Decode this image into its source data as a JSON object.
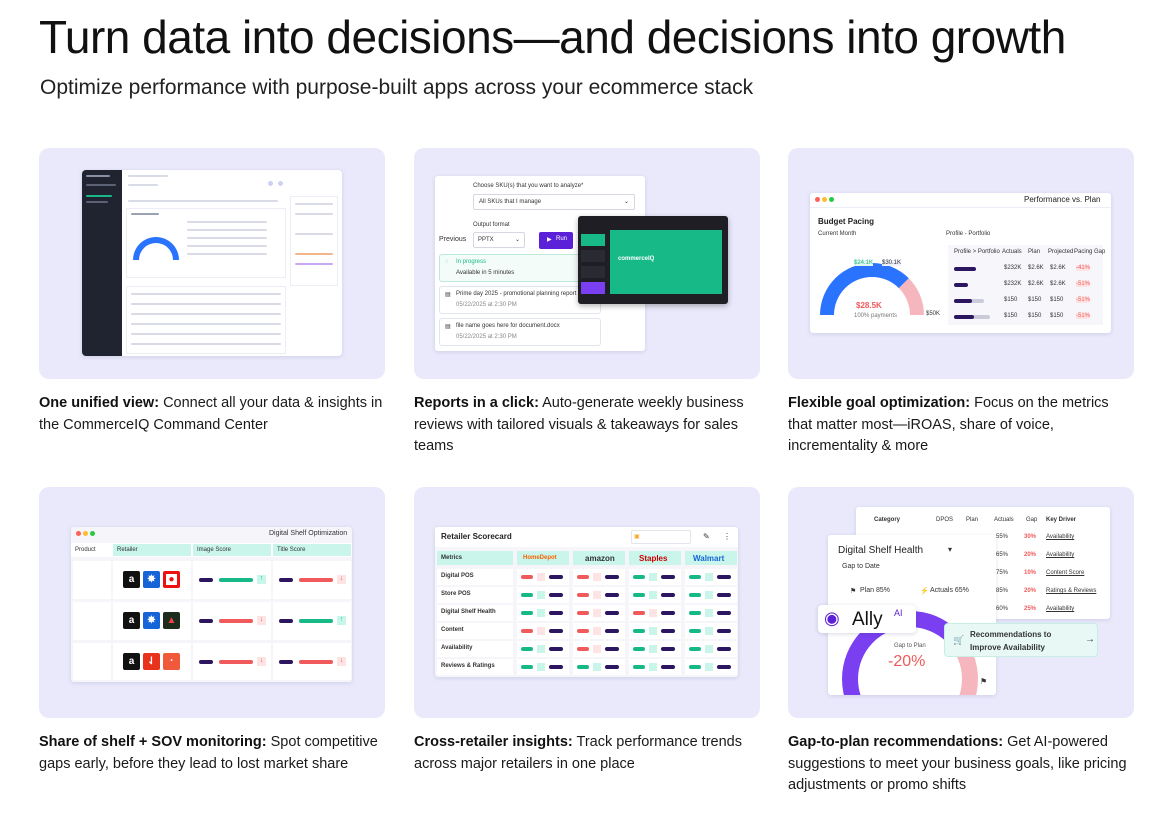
{
  "header": {
    "title": "Turn data into decisions—and decisions into growth",
    "subtitle": "Optimize performance with purpose-built apps across your ecommerce stack"
  },
  "cards": [
    {
      "title": "One unified view:",
      "desc": " Connect all your data & insights in the CommerceIQ Command Center"
    },
    {
      "title": "Reports in a click:",
      "desc": " Auto-generate weekly business reviews with tailored visuals & takeaways for sales teams"
    },
    {
      "title": "Flexible goal optimization:",
      "desc": " Focus on the metrics that matter most—iROAS, share of voice, incrementality & more"
    },
    {
      "title": "Share of shelf + SOV monitoring:",
      "desc": " Spot competitive gaps early, before they lead to lost market share"
    },
    {
      "title": "Cross-retailer insights:",
      "desc": " Track performance trends across major retailers in one place"
    },
    {
      "title": "Gap-to-plan recommendations:",
      "desc": " Get AI-powered suggestions to meet your business goals, like pricing adjustments or promo shifts"
    }
  ],
  "reports_mock": {
    "prompt": "Choose SKU(s) that you want to analyze*",
    "sku_value": "All SKUs that I manage",
    "format_label": "Output format",
    "format_value": "PPTX",
    "run_label": "Run",
    "previous_label": "Previous",
    "progress_title": "In progress",
    "progress_sub": "Available in 5 minutes",
    "file1": "Prime day 2025 - promotional planning report",
    "file1_date": "05/22/2025 at 2:30 PM",
    "file2": "file name goes here for document.docx",
    "file2_date": "05/22/2025 at 2:30 PM",
    "slide_brand": "commerceIQ"
  },
  "performance_mock": {
    "title": "Performance vs. Plan",
    "section": "Budget Pacing",
    "filter1": "Current Month",
    "filter2": "Profile - Portfolio",
    "gauge_value": "$28.5K",
    "gauge_sub": "100% payments",
    "gauge_left": "$24.1K",
    "gauge_right": "$30.1K",
    "gauge_end": "$50K",
    "col_headers": [
      "Profile > Portfolio",
      "Actuals",
      "Plan",
      "Projected",
      "Pacing Gap"
    ],
    "rows": [
      {
        "actual": "$232K",
        "plan": "$2.6K",
        "proj": "$2.6K",
        "gap": "-41%"
      },
      {
        "actual": "$232K",
        "plan": "$2.6K",
        "proj": "$2.6K",
        "gap": "-51%"
      },
      {
        "actual": "$150",
        "plan": "$150",
        "proj": "$150",
        "gap": "-51%"
      },
      {
        "actual": "$150",
        "plan": "$150",
        "proj": "$150",
        "gap": "-51%"
      }
    ]
  },
  "shelf_mock": {
    "title": "Digital Shelf Optimization",
    "columns": [
      "Product",
      "Retailer",
      "Image Score",
      "Title Score"
    ]
  },
  "scorecard_mock": {
    "title": "Retailer Scorecard",
    "first_col": "Metrics",
    "retailers": [
      "HomeDepot",
      "amazon",
      "Staples",
      "Walmart"
    ],
    "metrics": [
      "Digital POS",
      "Store POS",
      "Digital Shelf Health",
      "Content",
      "Availability",
      "Reviews & Ratings"
    ]
  },
  "ally_mock": {
    "col_category": "Category",
    "col_dpos": "DPOS",
    "col_plan": "Plan",
    "col_actuals": "Actuals",
    "col_gap": "Gap",
    "col_driver": "Key Driver",
    "rows": [
      {
        "actual": "55%",
        "gap": "30%",
        "driver": "Availability"
      },
      {
        "actual": "65%",
        "gap": "20%",
        "driver": "Availability"
      },
      {
        "actual": "75%",
        "gap": "10%",
        "driver": "Content Score"
      },
      {
        "actual": "85%",
        "gap": "20%",
        "driver": "Ratings & Reviews"
      },
      {
        "actual": "60%",
        "gap": "25%",
        "driver": "Availability"
      }
    ],
    "panel_title": "Digital Shelf Health",
    "panel_sub": "Gap to Date",
    "plan_label": "Plan 85%",
    "actuals_label": "Actuals 65%",
    "brand": "Ally",
    "brand_sup": "AI",
    "gap_label": "Gap to Plan",
    "gap_value": "-20%",
    "reco_line1": "Recommendations to",
    "reco_line2": "Improve Availability"
  },
  "colors": {
    "card_bg": "#e9e9fb",
    "purple": "#5b21d9",
    "green": "#17b987",
    "red": "#f05a5a",
    "teal_header": "#c9f5ea",
    "navy": "#2c1660"
  }
}
